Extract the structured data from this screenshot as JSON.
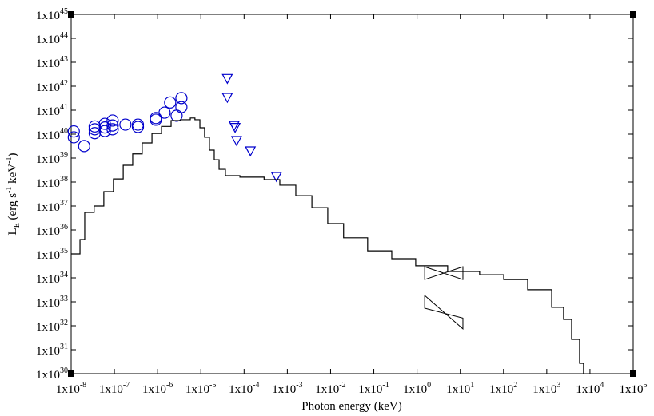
{
  "chart_data": {
    "type": "scatter",
    "log_x": true,
    "log_y": true,
    "xlabel": "Photon energy (keV)",
    "ylabel": {
      "main": "L",
      "sub": "E",
      "text1": " (erg s",
      "sup1": "-1",
      "text2": "  keV",
      "sup2": "-1",
      "text3": ")"
    },
    "xlim": [
      1e-08,
      100000.0
    ],
    "ylim": [
      1e+30,
      1e+45
    ],
    "xticks": [
      {
        "value": 1e-08,
        "label": "1x10",
        "sup": "-8"
      },
      {
        "value": 1e-07,
        "label": "1x10",
        "sup": "-7"
      },
      {
        "value": 1e-06,
        "label": "1x10",
        "sup": "-6"
      },
      {
        "value": 1e-05,
        "label": "1x10",
        "sup": "-5"
      },
      {
        "value": 0.0001,
        "label": "1x10",
        "sup": "-4"
      },
      {
        "value": 0.001,
        "label": "1x10",
        "sup": "-3"
      },
      {
        "value": 0.01,
        "label": "1x10",
        "sup": "-2"
      },
      {
        "value": 0.1,
        "label": "1x10",
        "sup": "-1"
      },
      {
        "value": 1,
        "label": "1x10",
        "sup": "0"
      },
      {
        "value": 10,
        "label": "1x10",
        "sup": "1"
      },
      {
        "value": 100,
        "label": "1x10",
        "sup": "2"
      },
      {
        "value": 1000,
        "label": "1x10",
        "sup": "3"
      },
      {
        "value": 10000,
        "label": "1x10",
        "sup": "4"
      },
      {
        "value": 100000,
        "label": "1x10",
        "sup": "5"
      }
    ],
    "yticks": [
      {
        "value": 1e+30,
        "label": "1x10",
        "sup": "30"
      },
      {
        "value": 1e+31,
        "label": "1x10",
        "sup": "31"
      },
      {
        "value": 1e+32,
        "label": "1x10",
        "sup": "32"
      },
      {
        "value": 1e+33,
        "label": "1x10",
        "sup": "33"
      },
      {
        "value": 1e+34,
        "label": "1x10",
        "sup": "34"
      },
      {
        "value": 1e+35,
        "label": "1x10",
        "sup": "35"
      },
      {
        "value": 1e+36,
        "label": "1x10",
        "sup": "36"
      },
      {
        "value": 1e+37,
        "label": "1x10",
        "sup": "37"
      },
      {
        "value": 1e+38,
        "label": "1x10",
        "sup": "38"
      },
      {
        "value": 1e+39,
        "label": "1x10",
        "sup": "39"
      },
      {
        "value": 1e+40,
        "label": "1x10",
        "sup": "40"
      },
      {
        "value": 1e+41,
        "label": "1x10",
        "sup": "41"
      },
      {
        "value": 1e+42,
        "label": "1x10",
        "sup": "42"
      },
      {
        "value": 1e+43,
        "label": "1x10",
        "sup": "43"
      },
      {
        "value": 1e+44,
        "label": "1x10",
        "sup": "44"
      },
      {
        "value": 1e+45,
        "label": "1x10",
        "sup": "45"
      }
    ],
    "series": [
      {
        "marker": "circle",
        "color": "#0000cc",
        "x": [
          1.15e-08,
          1.15e-08,
          2e-08,
          3.5e-08,
          3.5e-08,
          3.5e-08,
          6e-08,
          6e-08,
          6e-08,
          9.1e-08,
          9.1e-08,
          9.1e-08,
          1.8e-07,
          3.5e-07,
          3.5e-07,
          9.1e-07,
          9.1e-07,
          1.45e-06,
          1.95e-06,
          2.75e-06,
          3.55e-06,
          3.55e-06
        ],
        "values": [
          1.3e+40,
          7.4e+39,
          3.2e+39,
          2.1e+40,
          1.6e+40,
          1.1e+40,
          2.7e+40,
          1.9e+40,
          1.35e+40,
          3.7e+40,
          2.3e+40,
          1.6e+40,
          2.5e+40,
          2.5e+40,
          2e+40,
          4.7e+40,
          4e+40,
          7.9e+40,
          2.1e+41,
          5.9e+40,
          1.35e+41,
          3.2e+41
        ]
      },
      {
        "marker": "triangle-down",
        "color": "#0000cc",
        "x": [
          4.1e-05,
          4.1e-05,
          5.9e-05,
          6.2e-05,
          6.7e-05,
          0.00014,
          0.00056
        ],
        "values": [
          2.1e+42,
          3.4e+41,
          2.3e+40,
          1.9e+40,
          5.4e+39,
          2e+39,
          1.7e+38
        ]
      },
      {
        "marker": "step",
        "color": "#000000",
        "x": [
          1e-08,
          1.6e-08,
          2.06e-08,
          3.4e-08,
          5.7e-08,
          9.5e-08,
          1.6e-07,
          2.65e-07,
          4.4e-07,
          7.4e-07,
          1.23e-06,
          2.05e-06,
          3.4e-06,
          5.7e-06,
          7.3e-06,
          9.5e-06,
          1.22e-05,
          1.58e-05,
          2.04e-05,
          2.64e-05,
          3.7e-05,
          8e-05,
          0.00029,
          0.00067,
          0.00157,
          0.0037,
          0.0086,
          0.02,
          0.072,
          0.26,
          0.93,
          5.1,
          28,
          101,
          362,
          1300,
          2450,
          3760,
          5750,
          7100
        ],
        "values": [
          1e+35,
          4e+35,
          5.4e+36,
          1e+37,
          4e+37,
          1.35e+38,
          5e+38,
          1.5e+39,
          4.3e+39,
          1.07e+40,
          2.1e+40,
          3.7e+40,
          4e+40,
          4.7e+40,
          4e+40,
          1.85e+40,
          7.4e+39,
          2.15e+39,
          8.5e+38,
          3.4e+38,
          1.85e+38,
          1.6e+38,
          1.26e+38,
          7.4e+37,
          2.7e+37,
          8.5e+36,
          1.85e+36,
          4.7e+35,
          1.35e+35,
          6.3e+34,
          3.2e+34,
          1.85e+34,
          1.35e+34,
          8.5e+33,
          3.2e+33,
          5.9e+32,
          1.85e+32,
          2.7e+31,
          2.7e+30,
          1e+30
        ]
      }
    ],
    "bowties": [
      {
        "x": [
          1.5,
          11.5
        ],
        "y_left": [
          2.9e+34,
          8.5e+33
        ],
        "y_right": [
          2.9e+34,
          8.5e+33
        ]
      },
      {
        "x": [
          1.5,
          11.5
        ],
        "y_left": [
          1.85e+33,
          5.4e+32
        ],
        "y_right": [
          2.1e+32,
          7.4e+31
        ]
      }
    ]
  }
}
